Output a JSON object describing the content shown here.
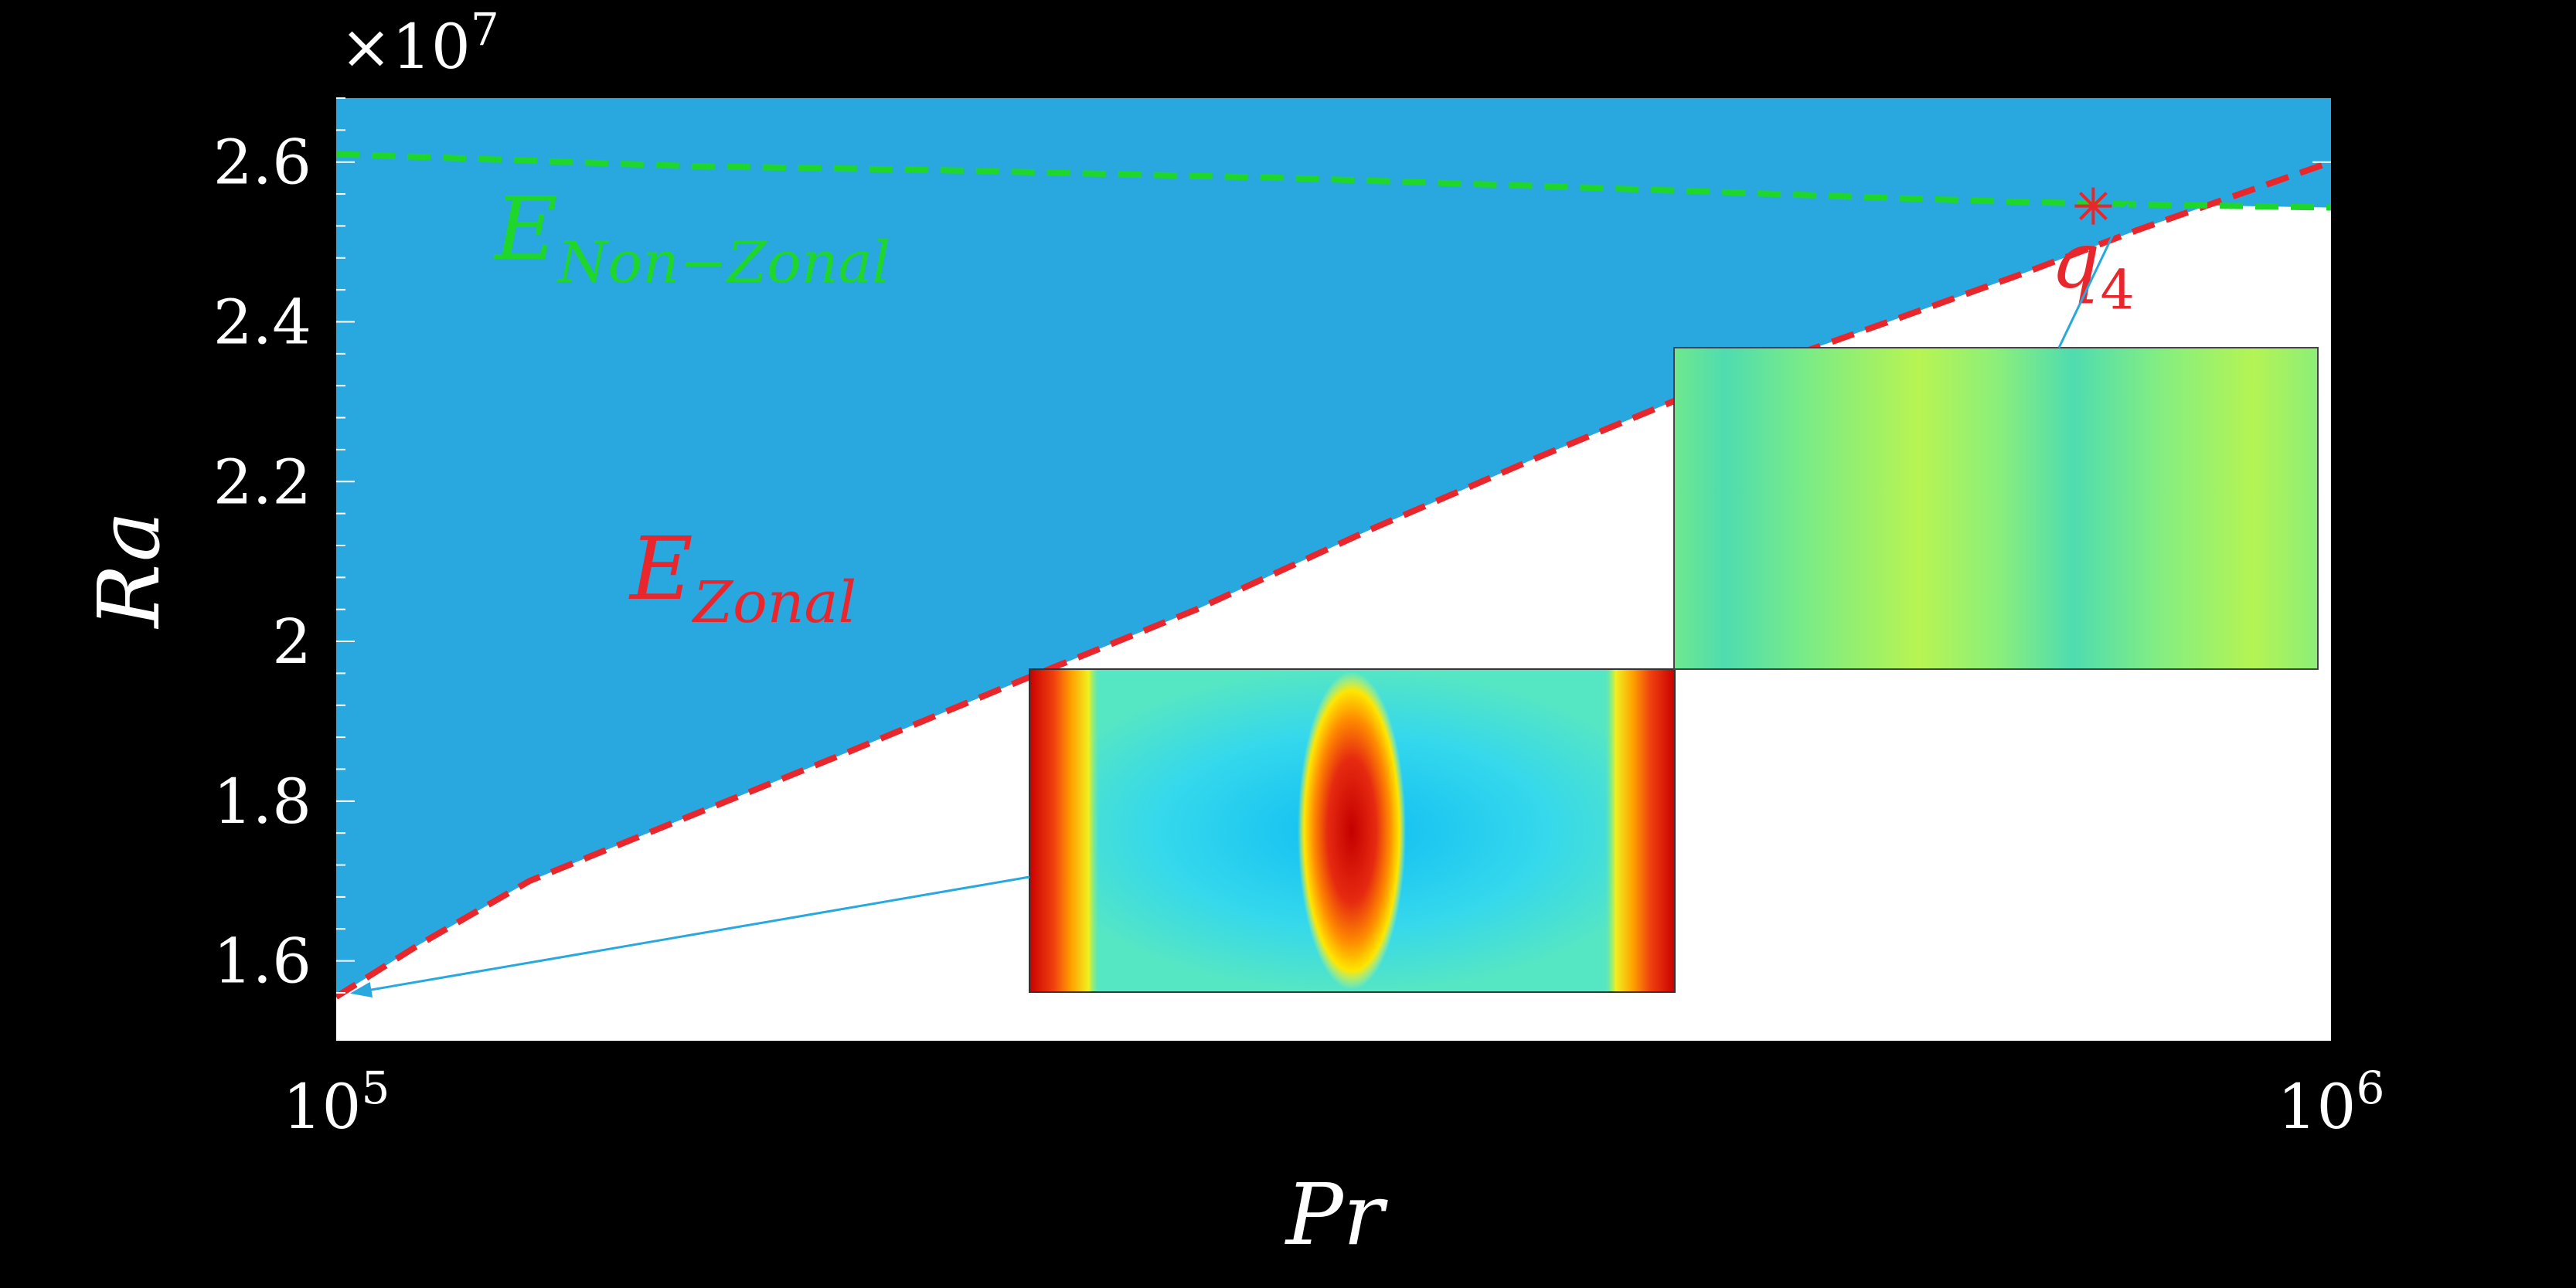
{
  "chart_data": {
    "type": "area",
    "xlabel": "Pr",
    "ylabel": "Ra",
    "x_scale": "log",
    "xlim": [
      100000,
      1000000
    ],
    "ylim": [
      15000000,
      26800000
    ],
    "y_multiplier_label": "×10",
    "y_multiplier_exp": "7",
    "x_ticks": [
      {
        "value": 100000,
        "base": "10",
        "exp": "5"
      },
      {
        "value": 1000000,
        "base": "10",
        "exp": "6"
      }
    ],
    "y_ticks": [
      {
        "value": 16000000,
        "label": "1.6"
      },
      {
        "value": 18000000,
        "label": "1.8"
      },
      {
        "value": 20000000,
        "label": "2"
      },
      {
        "value": 22000000,
        "label": "2.2"
      },
      {
        "value": 24000000,
        "label": "2.4"
      },
      {
        "value": 26000000,
        "label": "2.6"
      }
    ],
    "series": [
      {
        "name": "E_Zonal",
        "label_main": "E",
        "label_sub": "Zonal",
        "color": "#e8262b",
        "style": "dashed",
        "x": [
          100000,
          110000,
          125000,
          150000,
          180000,
          220000,
          270000,
          330000,
          400000,
          500000,
          600000,
          700000,
          800000,
          900000,
          1000000
        ],
        "y": [
          15550000,
          16200000,
          17000000,
          17800000,
          18600000,
          19500000,
          20400000,
          21400000,
          22300000,
          23300000,
          24000000,
          24600000,
          25150000,
          25600000,
          26000000
        ]
      },
      {
        "name": "E_Non-Zonal",
        "label_main": "E",
        "label_sub": "Non−Zonal",
        "color": "#1fd72a",
        "style": "dashed",
        "x": [
          100000,
          150000,
          200000,
          300000,
          400000,
          500000,
          600000,
          700000,
          800000,
          900000,
          1000000
        ],
        "y": [
          26100000,
          25950000,
          25900000,
          25800000,
          25700000,
          25620000,
          25550000,
          25500000,
          25470000,
          25450000,
          25430000
        ]
      }
    ],
    "stable_region_color": "#29a8df",
    "point": {
      "label_main": "q",
      "label_sub": "4",
      "x": 760000,
      "y": 25450000,
      "color": "#e8262b"
    },
    "insets": [
      {
        "name": "zonal-mode-inset",
        "points_to": {
          "x": 102000,
          "y": 15600000
        }
      },
      {
        "name": "q4-mode-inset",
        "points_to": {
          "x": 790000,
          "y": 25450000
        }
      }
    ]
  }
}
